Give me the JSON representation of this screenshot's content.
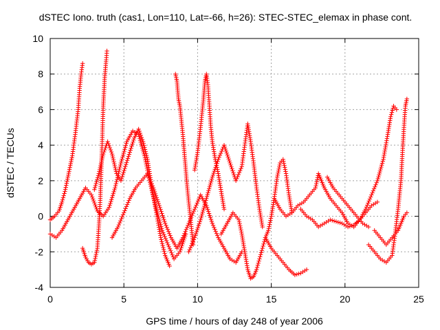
{
  "chart_data": {
    "type": "scatter",
    "title": "dSTEC Iono. truth (cas1, Lon=110, Lat=-66, h=26): STEC-STEC_elemax in phase cont.",
    "xlabel": "GPS time / hours of day 248 of year 2006",
    "ylabel": "dSTEC  / TECUs",
    "xlim": [
      0,
      25
    ],
    "ylim": [
      -4,
      10
    ],
    "x_ticks": [
      0,
      5,
      10,
      15,
      20,
      25
    ],
    "y_ticks": [
      -4,
      -2,
      0,
      2,
      4,
      6,
      8,
      10
    ],
    "grid": true,
    "marker": "+",
    "series_color": "#ff0000",
    "grid_color": "#a0a0a0",
    "series": [
      {
        "values": [
          [
            0.0,
            -0.2
          ],
          [
            0.3,
            0.0
          ],
          [
            0.6,
            0.3
          ],
          [
            0.8,
            0.8
          ],
          [
            1.0,
            1.4
          ],
          [
            1.2,
            2.2
          ],
          [
            1.5,
            3.4
          ],
          [
            1.7,
            4.6
          ],
          [
            1.9,
            6.0
          ],
          [
            2.0,
            7.2
          ],
          [
            2.1,
            8.0
          ],
          [
            2.2,
            8.6
          ]
        ]
      },
      {
        "values": [
          [
            2.2,
            -1.8
          ],
          [
            2.4,
            -2.3
          ],
          [
            2.6,
            -2.6
          ],
          [
            2.8,
            -2.7
          ],
          [
            3.0,
            -2.6
          ],
          [
            3.2,
            -1.8
          ],
          [
            3.3,
            -0.6
          ],
          [
            3.4,
            1.0
          ],
          [
            3.5,
            3.5
          ],
          [
            3.6,
            6.2
          ],
          [
            3.7,
            7.8
          ],
          [
            3.8,
            8.8
          ],
          [
            3.85,
            9.3
          ]
        ]
      },
      {
        "values": [
          [
            0.0,
            -1.0
          ],
          [
            0.4,
            -1.2
          ],
          [
            0.8,
            -0.8
          ],
          [
            1.2,
            -0.2
          ],
          [
            1.6,
            0.4
          ],
          [
            2.0,
            1.0
          ],
          [
            2.4,
            1.6
          ],
          [
            2.8,
            1.2
          ],
          [
            3.2,
            0.3
          ],
          [
            3.6,
            0.0
          ],
          [
            4.0,
            0.5
          ],
          [
            4.4,
            1.6
          ],
          [
            4.8,
            3.0
          ],
          [
            5.2,
            4.2
          ],
          [
            5.6,
            4.8
          ],
          [
            6.0,
            4.6
          ],
          [
            6.4,
            3.4
          ],
          [
            6.8,
            1.8
          ],
          [
            7.2,
            0.4
          ],
          [
            7.6,
            -0.8
          ],
          [
            8.0,
            -1.6
          ],
          [
            8.4,
            -2.4
          ],
          [
            8.8,
            -2.0
          ],
          [
            9.2,
            -1.0
          ]
        ]
      },
      {
        "values": [
          [
            3.0,
            1.5
          ],
          [
            3.3,
            2.4
          ],
          [
            3.6,
            3.5
          ],
          [
            3.9,
            4.2
          ],
          [
            4.2,
            3.5
          ],
          [
            4.5,
            2.4
          ],
          [
            4.8,
            2.0
          ],
          [
            5.1,
            2.8
          ],
          [
            5.4,
            3.6
          ],
          [
            5.7,
            4.4
          ],
          [
            6.0,
            4.9
          ],
          [
            6.3,
            4.2
          ],
          [
            6.6,
            3.2
          ],
          [
            6.9,
            1.6
          ],
          [
            7.2,
            0.2
          ],
          [
            7.5,
            -1.2
          ],
          [
            7.8,
            -2.2
          ],
          [
            8.1,
            -2.8
          ]
        ]
      },
      {
        "values": [
          [
            4.2,
            -1.2
          ],
          [
            4.6,
            -0.6
          ],
          [
            5.0,
            0.2
          ],
          [
            5.4,
            1.0
          ],
          [
            5.8,
            1.6
          ],
          [
            6.2,
            2.0
          ],
          [
            6.6,
            2.4
          ],
          [
            7.0,
            1.6
          ],
          [
            7.4,
            0.6
          ],
          [
            7.8,
            -0.4
          ],
          [
            8.2,
            -1.2
          ],
          [
            8.6,
            -1.8
          ],
          [
            9.0,
            -1.2
          ],
          [
            9.4,
            -0.4
          ],
          [
            9.8,
            0.4
          ],
          [
            10.2,
            1.2
          ],
          [
            10.6,
            0.6
          ],
          [
            11.0,
            -0.4
          ],
          [
            11.4,
            -1.2
          ],
          [
            11.8,
            -1.8
          ],
          [
            12.2,
            -2.4
          ],
          [
            12.6,
            -2.6
          ],
          [
            13.0,
            -2.0
          ]
        ]
      },
      {
        "values": [
          [
            8.5,
            8.0
          ],
          [
            8.6,
            7.6
          ],
          [
            8.7,
            6.6
          ],
          [
            8.8,
            6.2
          ],
          [
            8.9,
            5.4
          ],
          [
            9.0,
            4.6
          ],
          [
            9.1,
            3.6
          ],
          [
            9.2,
            2.6
          ],
          [
            9.3,
            1.6
          ],
          [
            9.4,
            0.8
          ],
          [
            9.5,
            0.0
          ],
          [
            9.6,
            -0.8
          ],
          [
            9.7,
            -1.6
          ]
        ]
      },
      {
        "values": [
          [
            9.8,
            2.6
          ],
          [
            10.0,
            3.6
          ],
          [
            10.2,
            5.0
          ],
          [
            10.4,
            6.6
          ],
          [
            10.5,
            7.6
          ],
          [
            10.6,
            8.0
          ],
          [
            10.7,
            7.4
          ],
          [
            10.8,
            6.2
          ],
          [
            10.9,
            5.0
          ],
          [
            11.0,
            4.2
          ],
          [
            11.2,
            3.2
          ],
          [
            11.4,
            2.4
          ],
          [
            11.6,
            1.4
          ],
          [
            11.8,
            0.4
          ]
        ]
      },
      {
        "values": [
          [
            9.4,
            -2.0
          ],
          [
            9.8,
            -1.2
          ],
          [
            10.2,
            -0.2
          ],
          [
            10.6,
            1.0
          ],
          [
            11.0,
            2.2
          ],
          [
            11.4,
            3.2
          ],
          [
            11.8,
            4.0
          ],
          [
            12.2,
            3.0
          ],
          [
            12.6,
            2.0
          ],
          [
            13.0,
            2.8
          ],
          [
            13.2,
            4.0
          ],
          [
            13.4,
            5.2
          ],
          [
            13.6,
            4.2
          ],
          [
            13.8,
            3.0
          ],
          [
            14.0,
            1.6
          ],
          [
            14.2,
            0.4
          ],
          [
            14.4,
            -0.6
          ]
        ]
      },
      {
        "values": [
          [
            11.6,
            -1.0
          ],
          [
            12.0,
            -0.4
          ],
          [
            12.4,
            0.2
          ],
          [
            12.8,
            -0.2
          ],
          [
            13.0,
            -1.0
          ],
          [
            13.2,
            -2.0
          ],
          [
            13.4,
            -3.0
          ],
          [
            13.6,
            -3.5
          ],
          [
            13.8,
            -3.4
          ],
          [
            14.0,
            -3.0
          ],
          [
            14.2,
            -2.4
          ],
          [
            14.4,
            -1.8
          ],
          [
            14.6,
            -1.2
          ],
          [
            14.8,
            -0.8
          ],
          [
            15.0,
            0.0
          ],
          [
            15.2,
            1.0
          ],
          [
            15.4,
            2.2
          ],
          [
            15.6,
            3.0
          ],
          [
            15.8,
            3.2
          ],
          [
            16.0,
            2.4
          ],
          [
            16.2,
            1.2
          ],
          [
            16.4,
            0.2
          ]
        ]
      },
      {
        "values": [
          [
            14.6,
            -1.2
          ],
          [
            15.0,
            -1.8
          ],
          [
            15.4,
            -2.2
          ],
          [
            15.8,
            -2.6
          ],
          [
            16.2,
            -3.0
          ],
          [
            16.6,
            -3.3
          ],
          [
            17.0,
            -3.2
          ],
          [
            17.4,
            -3.0
          ]
        ]
      },
      {
        "values": [
          [
            15.2,
            1.0
          ],
          [
            15.6,
            0.4
          ],
          [
            16.0,
            0.0
          ],
          [
            16.4,
            0.2
          ],
          [
            16.8,
            0.6
          ],
          [
            17.2,
            0.8
          ],
          [
            17.6,
            1.2
          ],
          [
            18.0,
            1.6
          ],
          [
            18.2,
            2.4
          ],
          [
            18.4,
            2.0
          ],
          [
            18.6,
            1.6
          ],
          [
            19.0,
            1.0
          ],
          [
            19.4,
            0.6
          ],
          [
            19.8,
            0.2
          ],
          [
            20.2,
            -0.4
          ],
          [
            20.6,
            -0.6
          ],
          [
            21.0,
            -0.2
          ],
          [
            21.4,
            0.2
          ],
          [
            21.8,
            0.6
          ],
          [
            22.2,
            0.8
          ]
        ]
      },
      {
        "values": [
          [
            17.0,
            0.4
          ],
          [
            17.4,
            0.0
          ],
          [
            17.8,
            -0.2
          ],
          [
            18.2,
            -0.6
          ],
          [
            18.6,
            -0.4
          ],
          [
            19.0,
            -0.2
          ],
          [
            19.4,
            -0.3
          ],
          [
            19.8,
            -0.4
          ],
          [
            20.2,
            -0.6
          ],
          [
            20.6,
            -0.5
          ],
          [
            21.0,
            -0.2
          ],
          [
            21.4,
            0.4
          ],
          [
            21.8,
            1.2
          ],
          [
            22.2,
            2.0
          ],
          [
            22.6,
            3.2
          ],
          [
            22.9,
            4.6
          ],
          [
            23.1,
            5.6
          ],
          [
            23.3,
            6.2
          ],
          [
            23.5,
            6.0
          ]
        ]
      },
      {
        "values": [
          [
            18.8,
            2.2
          ],
          [
            19.2,
            1.6
          ],
          [
            19.6,
            1.2
          ],
          [
            20.0,
            0.8
          ],
          [
            20.4,
            0.4
          ],
          [
            20.8,
            0.0
          ],
          [
            21.2,
            -0.4
          ],
          [
            21.6,
            -0.6
          ]
        ]
      },
      {
        "values": [
          [
            21.6,
            -1.6
          ],
          [
            22.0,
            -2.0
          ],
          [
            22.4,
            -2.4
          ],
          [
            22.8,
            -2.6
          ],
          [
            23.2,
            -2.2
          ],
          [
            23.4,
            -1.0
          ],
          [
            23.6,
            0.4
          ],
          [
            23.8,
            2.0
          ],
          [
            23.9,
            3.6
          ],
          [
            24.0,
            5.0
          ],
          [
            24.1,
            6.2
          ],
          [
            24.2,
            6.6
          ]
        ]
      },
      {
        "values": [
          [
            22.0,
            -0.8
          ],
          [
            22.4,
            -1.2
          ],
          [
            22.8,
            -1.6
          ],
          [
            23.2,
            -1.2
          ],
          [
            23.6,
            -0.8
          ],
          [
            23.8,
            -0.4
          ],
          [
            24.0,
            0.0
          ],
          [
            24.2,
            0.2
          ]
        ]
      }
    ]
  }
}
